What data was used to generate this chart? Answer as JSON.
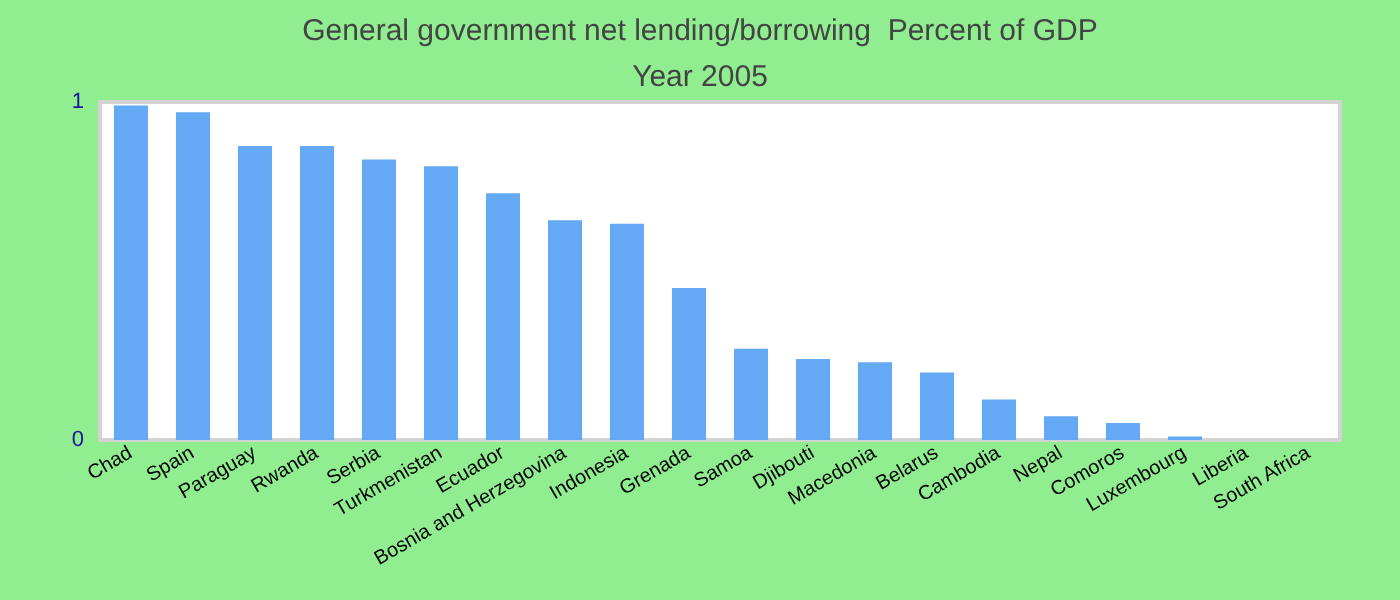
{
  "chart_data": {
    "type": "bar",
    "title": "General government net lending/borrowing  Percent of GDP",
    "subtitle": "Year 2005",
    "categories": [
      "Chad",
      "Spain",
      "Paraguay",
      "Rwanda",
      "Serbia",
      "Turkmenistan",
      "Ecuador",
      "Bosnia and Herzegovina",
      "Indonesia",
      "Grenada",
      "Samoa",
      "Djibouti",
      "Macedonia",
      "Belarus",
      "Cambodia",
      "Nepal",
      "Comoros",
      "Luxembourg",
      "Liberia",
      "South Africa"
    ],
    "values": [
      0.99,
      0.97,
      0.87,
      0.87,
      0.83,
      0.81,
      0.73,
      0.65,
      0.64,
      0.45,
      0.27,
      0.24,
      0.23,
      0.2,
      0.12,
      0.07,
      0.05,
      0.01,
      0,
      0
    ],
    "color": "#63a9f4",
    "ylim": [
      0,
      1
    ],
    "yticks": [
      0,
      1
    ],
    "grid": false
  }
}
